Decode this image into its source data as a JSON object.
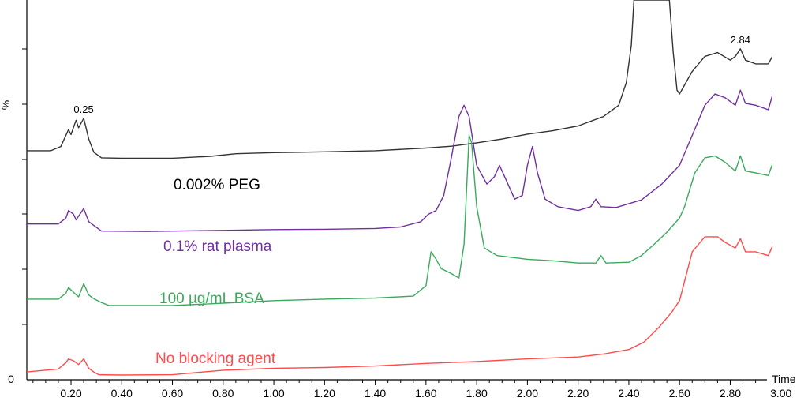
{
  "chart_data": {
    "type": "line",
    "title": "",
    "xlabel": "Time",
    "ylabel": "%",
    "xlim": [
      0.0,
      3.0
    ],
    "x_ticks": [
      0.2,
      0.4,
      0.6,
      0.8,
      1.0,
      1.2,
      1.4,
      1.6,
      1.8,
      2.0,
      2.2,
      2.4,
      2.6,
      2.8,
      3.0
    ],
    "x_tick_labels": [
      "0.20",
      "0.40",
      "0.60",
      "0.80",
      "1.00",
      "1.20",
      "1.40",
      "1.60",
      "1.80",
      "2.00",
      "2.20",
      "2.40",
      "2.60",
      "2.80",
      "3.00"
    ],
    "y_tick_labels": [
      "%",
      "0"
    ],
    "grid": false,
    "series": [
      {
        "name": "0.002% PEG",
        "color": "#333333",
        "points": [
          [
            0.02,
            0.599
          ],
          [
            0.12,
            0.599
          ],
          [
            0.16,
            0.61
          ],
          [
            0.19,
            0.655
          ],
          [
            0.2,
            0.642
          ],
          [
            0.22,
            0.68
          ],
          [
            0.23,
            0.66
          ],
          [
            0.25,
            0.685
          ],
          [
            0.27,
            0.63
          ],
          [
            0.29,
            0.595
          ],
          [
            0.32,
            0.58
          ],
          [
            0.4,
            0.579
          ],
          [
            0.6,
            0.579
          ],
          [
            0.75,
            0.584
          ],
          [
            0.85,
            0.591
          ],
          [
            1.0,
            0.594
          ],
          [
            1.2,
            0.596
          ],
          [
            1.4,
            0.599
          ],
          [
            1.6,
            0.606
          ],
          [
            1.7,
            0.611
          ],
          [
            1.8,
            0.62
          ],
          [
            1.9,
            0.63
          ],
          [
            2.0,
            0.643
          ],
          [
            2.1,
            0.652
          ],
          [
            2.2,
            0.665
          ],
          [
            2.3,
            0.69
          ],
          [
            2.36,
            0.72
          ],
          [
            2.39,
            0.78
          ],
          [
            2.41,
            0.88
          ],
          [
            2.42,
            1.0
          ],
          [
            2.56,
            1.0
          ],
          [
            2.575,
            0.86
          ],
          [
            2.59,
            0.76
          ],
          [
            2.6,
            0.75
          ],
          [
            2.65,
            0.81
          ],
          [
            2.7,
            0.85
          ],
          [
            2.75,
            0.86
          ],
          [
            2.8,
            0.84
          ],
          [
            2.82,
            0.85
          ],
          [
            2.84,
            0.87
          ],
          [
            2.86,
            0.84
          ],
          [
            2.9,
            0.83
          ],
          [
            2.95,
            0.83
          ],
          [
            2.97,
            0.855
          ],
          [
            3.0,
            0.85
          ]
        ]
      },
      {
        "name": "0.1% rat plasma",
        "color": "#7030a0",
        "points": [
          [
            0.02,
            0.404
          ],
          [
            0.15,
            0.404
          ],
          [
            0.18,
            0.42
          ],
          [
            0.19,
            0.44
          ],
          [
            0.21,
            0.43
          ],
          [
            0.22,
            0.415
          ],
          [
            0.25,
            0.445
          ],
          [
            0.27,
            0.41
          ],
          [
            0.29,
            0.4
          ],
          [
            0.32,
            0.385
          ],
          [
            0.5,
            0.384
          ],
          [
            0.8,
            0.387
          ],
          [
            1.0,
            0.389
          ],
          [
            1.2,
            0.39
          ],
          [
            1.4,
            0.392
          ],
          [
            1.5,
            0.396
          ],
          [
            1.58,
            0.41
          ],
          [
            1.61,
            0.43
          ],
          [
            1.64,
            0.44
          ],
          [
            1.67,
            0.48
          ],
          [
            1.7,
            0.58
          ],
          [
            1.73,
            0.69
          ],
          [
            1.75,
            0.72
          ],
          [
            1.77,
            0.69
          ],
          [
            1.8,
            0.56
          ],
          [
            1.84,
            0.51
          ],
          [
            1.87,
            0.53
          ],
          [
            1.89,
            0.56
          ],
          [
            1.91,
            0.53
          ],
          [
            1.95,
            0.47
          ],
          [
            1.98,
            0.48
          ],
          [
            2.0,
            0.56
          ],
          [
            2.02,
            0.61
          ],
          [
            2.04,
            0.54
          ],
          [
            2.07,
            0.47
          ],
          [
            2.12,
            0.45
          ],
          [
            2.2,
            0.44
          ],
          [
            2.25,
            0.45
          ],
          [
            2.27,
            0.47
          ],
          [
            2.29,
            0.45
          ],
          [
            2.35,
            0.448
          ],
          [
            2.45,
            0.468
          ],
          [
            2.53,
            0.51
          ],
          [
            2.6,
            0.56
          ],
          [
            2.65,
            0.64
          ],
          [
            2.7,
            0.72
          ],
          [
            2.74,
            0.75
          ],
          [
            2.78,
            0.74
          ],
          [
            2.82,
            0.72
          ],
          [
            2.84,
            0.76
          ],
          [
            2.86,
            0.725
          ],
          [
            2.9,
            0.72
          ],
          [
            2.95,
            0.708
          ],
          [
            2.97,
            0.755
          ],
          [
            3.0,
            0.74
          ]
        ]
      },
      {
        "name": "100 µg/mL  BSA",
        "color": "#3aaa5c",
        "points": [
          [
            0.02,
            0.204
          ],
          [
            0.15,
            0.204
          ],
          [
            0.18,
            0.22
          ],
          [
            0.19,
            0.235
          ],
          [
            0.21,
            0.222
          ],
          [
            0.23,
            0.21
          ],
          [
            0.25,
            0.245
          ],
          [
            0.27,
            0.215
          ],
          [
            0.29,
            0.205
          ],
          [
            0.32,
            0.195
          ],
          [
            0.35,
            0.187
          ],
          [
            0.6,
            0.187
          ],
          [
            0.8,
            0.193
          ],
          [
            1.0,
            0.2
          ],
          [
            1.2,
            0.204
          ],
          [
            1.4,
            0.207
          ],
          [
            1.55,
            0.212
          ],
          [
            1.6,
            0.24
          ],
          [
            1.62,
            0.33
          ],
          [
            1.64,
            0.31
          ],
          [
            1.66,
            0.285
          ],
          [
            1.7,
            0.272
          ],
          [
            1.73,
            0.26
          ],
          [
            1.75,
            0.35
          ],
          [
            1.77,
            0.64
          ],
          [
            1.78,
            0.62
          ],
          [
            1.8,
            0.45
          ],
          [
            1.83,
            0.34
          ],
          [
            1.88,
            0.32
          ],
          [
            2.0,
            0.31
          ],
          [
            2.1,
            0.306
          ],
          [
            2.2,
            0.3
          ],
          [
            2.27,
            0.3
          ],
          [
            2.29,
            0.32
          ],
          [
            2.31,
            0.3
          ],
          [
            2.4,
            0.302
          ],
          [
            2.45,
            0.32
          ],
          [
            2.5,
            0.35
          ],
          [
            2.55,
            0.382
          ],
          [
            2.6,
            0.42
          ],
          [
            2.62,
            0.45
          ],
          [
            2.66,
            0.54
          ],
          [
            2.7,
            0.58
          ],
          [
            2.74,
            0.585
          ],
          [
            2.78,
            0.568
          ],
          [
            2.82,
            0.545
          ],
          [
            2.84,
            0.585
          ],
          [
            2.86,
            0.545
          ],
          [
            2.9,
            0.54
          ],
          [
            2.95,
            0.533
          ],
          [
            2.97,
            0.57
          ],
          [
            3.0,
            0.55
          ]
        ]
      },
      {
        "name": "No blocking  agent",
        "color": "#ff4b4b",
        "points": [
          [
            0.02,
            0.01
          ],
          [
            0.15,
            0.018
          ],
          [
            0.18,
            0.035
          ],
          [
            0.19,
            0.045
          ],
          [
            0.21,
            0.04
          ],
          [
            0.23,
            0.03
          ],
          [
            0.25,
            0.045
          ],
          [
            0.27,
            0.02
          ],
          [
            0.29,
            0.01
          ],
          [
            0.31,
            0.003
          ],
          [
            0.4,
            0.002
          ],
          [
            0.6,
            0.003
          ],
          [
            0.8,
            0.015
          ],
          [
            1.0,
            0.02
          ],
          [
            1.2,
            0.022
          ],
          [
            1.4,
            0.026
          ],
          [
            1.6,
            0.033
          ],
          [
            1.8,
            0.038
          ],
          [
            2.0,
            0.045
          ],
          [
            2.2,
            0.05
          ],
          [
            2.3,
            0.058
          ],
          [
            2.4,
            0.07
          ],
          [
            2.46,
            0.09
          ],
          [
            2.52,
            0.13
          ],
          [
            2.57,
            0.17
          ],
          [
            2.6,
            0.2
          ],
          [
            2.65,
            0.33
          ],
          [
            2.7,
            0.37
          ],
          [
            2.75,
            0.37
          ],
          [
            2.78,
            0.355
          ],
          [
            2.82,
            0.34
          ],
          [
            2.84,
            0.365
          ],
          [
            2.86,
            0.33
          ],
          [
            2.9,
            0.33
          ],
          [
            2.95,
            0.32
          ],
          [
            2.97,
            0.35
          ],
          [
            3.0,
            0.33
          ]
        ]
      }
    ],
    "annotations": [
      {
        "text": "0.25",
        "x": 0.25,
        "y": 0.685
      },
      {
        "text": "2.84",
        "x": 2.84,
        "y": 0.87
      }
    ]
  },
  "series_labels": {
    "peg": "0.002% PEG",
    "plasma": "0.1% rat plasma",
    "bsa": "100 µg/mL  BSA",
    "none": "No blocking  agent"
  }
}
